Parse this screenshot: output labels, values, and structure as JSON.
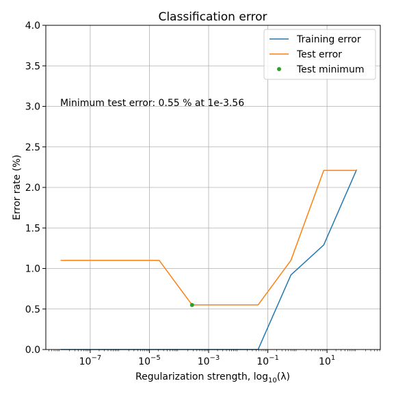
{
  "chart_data": {
    "type": "line",
    "title": "Classification error",
    "xlabel_prefix": "Regularization strength, log",
    "xlabel_sub": "10",
    "xlabel_suffix": "(λ)",
    "ylabel": "Error rate (%)",
    "xscale": "log",
    "xlim_log10": [
      -8.5,
      2.8
    ],
    "ylim": [
      0,
      4.0
    ],
    "grid": true,
    "legend_position": "top-right",
    "x_ticks": [
      {
        "exp": -7,
        "base": "10",
        "sup": "−7"
      },
      {
        "exp": -5,
        "base": "10",
        "sup": "−5"
      },
      {
        "exp": -3,
        "base": "10",
        "sup": "−3"
      },
      {
        "exp": -1,
        "base": "10",
        "sup": "−1"
      },
      {
        "exp": 1,
        "base": "10",
        "sup": "1"
      }
    ],
    "y_ticks": [
      "0.0",
      "0.5",
      "1.0",
      "1.5",
      "2.0",
      "2.5",
      "3.0",
      "3.5",
      "4.0"
    ],
    "series": [
      {
        "name": "Training error",
        "color": "#1f77b4",
        "x_log10": [
          -8.0,
          -6.89,
          -5.78,
          -4.67,
          -3.56,
          -2.44,
          -1.33,
          -0.22,
          0.89,
          2.0
        ],
        "values": [
          0.0,
          0.0,
          0.0,
          0.0,
          0.0,
          0.0,
          0.0,
          0.92,
          1.29,
          2.22
        ]
      },
      {
        "name": "Test error",
        "color": "#ff7f0e",
        "x_log10": [
          -8.0,
          -6.89,
          -5.78,
          -4.67,
          -3.56,
          -2.44,
          -1.33,
          -0.22,
          0.89,
          2.0
        ],
        "values": [
          1.1,
          1.1,
          1.1,
          1.1,
          0.55,
          0.55,
          0.55,
          1.1,
          2.21,
          2.21
        ]
      }
    ],
    "markers": [
      {
        "name": "Test minimum",
        "color": "#2ca02c",
        "x_log10": -3.56,
        "value": 0.55
      }
    ],
    "annotation": "Minimum test error: 0.55 % at 1e-3.56"
  }
}
